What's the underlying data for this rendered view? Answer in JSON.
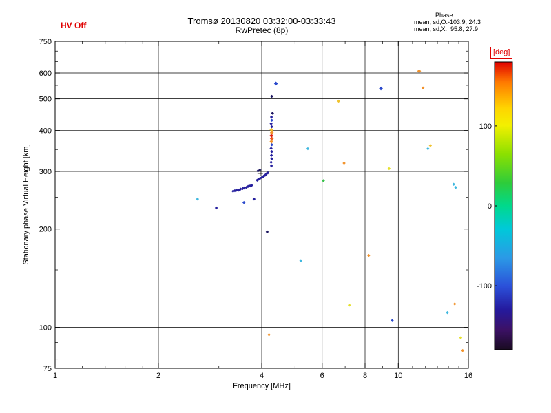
{
  "header": {
    "hv_status": "HV Off",
    "title": "Tromsø 20130820 03:32:00-03:33:43",
    "subtitle": "RwPretec (8p)",
    "stats_title": "Phase",
    "stats_line1": "mean, sd,O:-103.9, 24.3",
    "stats_line2": "mean, sd,X:  95.8, 27.9"
  },
  "axes": {
    "x_label": "Frequency [MHz]",
    "y_label": "Stationary phase Virtual Height [km]",
    "x_ticks": [
      1,
      2,
      4,
      6,
      8,
      10,
      16
    ],
    "y_ticks": [
      75,
      100,
      200,
      300,
      400,
      500,
      600,
      750
    ],
    "x_minor": [
      1.2,
      1.4,
      1.6,
      1.8,
      3,
      5,
      7,
      9,
      11,
      12,
      13,
      14,
      15
    ],
    "y_minor": [
      80,
      90,
      150,
      250,
      350,
      450,
      550,
      650,
      700
    ]
  },
  "colorbar": {
    "label": "[deg]",
    "ticks": [
      100,
      0,
      -100
    ],
    "range": [
      180,
      -180
    ],
    "stops": [
      [
        "#e00000",
        0
      ],
      [
        "#ff7a00",
        0.07
      ],
      [
        "#ffd400",
        0.16
      ],
      [
        "#f3f000",
        0.22
      ],
      [
        "#8ce000",
        0.32
      ],
      [
        "#2ecc3a",
        0.42
      ],
      [
        "#00d98c",
        0.5
      ],
      [
        "#00c9d9",
        0.58
      ],
      [
        "#2b9ae6",
        0.68
      ],
      [
        "#2b50d9",
        0.78
      ],
      [
        "#241a9e",
        0.86
      ],
      [
        "#3c1166",
        0.93
      ],
      [
        "#190b20",
        1
      ]
    ]
  },
  "colors": {
    "accent_red": "#e00000",
    "axis": "#000000",
    "background": "#ffffff"
  },
  "chart_data": {
    "type": "scatter",
    "title": "Tromsø 20130820 03:32:00-03:33:43",
    "xlabel": "Frequency [MHz]",
    "ylabel": "Stationary phase Virtual Height [km]",
    "xlim": [
      1,
      16
    ],
    "ylim": [
      75,
      750
    ],
    "xscale": "log",
    "yscale": "log",
    "color_dimension": "phase [deg]",
    "grid": true,
    "points": [
      [
        3.3,
        261,
        "#26209e"
      ],
      [
        3.34,
        262,
        "#26209e"
      ],
      [
        3.38,
        263,
        "#26209e"
      ],
      [
        3.43,
        263,
        "#26209e"
      ],
      [
        3.47,
        265,
        "#26209e"
      ],
      [
        3.52,
        266,
        "#26209e"
      ],
      [
        3.56,
        267,
        "#26209e"
      ],
      [
        3.61,
        268,
        "#26209e"
      ],
      [
        3.65,
        270,
        "#26209e"
      ],
      [
        3.7,
        271,
        "#26209e"
      ],
      [
        3.74,
        272,
        "#26209e"
      ],
      [
        3.88,
        282,
        "#26209e"
      ],
      [
        3.92,
        284,
        "#26209e"
      ],
      [
        3.96,
        286,
        "#26209e"
      ],
      [
        4.01,
        288,
        "#26209e"
      ],
      [
        4.05,
        290,
        "#26209e"
      ],
      [
        4.09,
        292,
        "#26209e"
      ],
      [
        4.13,
        295,
        "#26209e"
      ],
      [
        4.17,
        297,
        "#26209e"
      ],
      [
        3.9,
        301,
        "#1b1560"
      ],
      [
        3.95,
        303,
        "#1b1560"
      ],
      [
        4.27,
        312,
        "#26209e"
      ],
      [
        4.26,
        320,
        "#26209e"
      ],
      [
        4.28,
        328,
        "#26209e"
      ],
      [
        4.27,
        336,
        "#26209e"
      ],
      [
        4.28,
        345,
        "#26209e"
      ],
      [
        4.26,
        353,
        "#26209e"
      ],
      [
        4.28,
        362,
        "#2a49cc"
      ],
      [
        4.27,
        370,
        "#f2922a",
        4
      ],
      [
        4.28,
        378,
        "#ee5a1c",
        4
      ],
      [
        4.27,
        386,
        "#e02318",
        4
      ],
      [
        4.28,
        394,
        "#f2922a",
        4
      ],
      [
        4.27,
        402,
        "#f0c32e",
        4
      ],
      [
        4.28,
        411,
        "#26209e"
      ],
      [
        4.26,
        420,
        "#26209e"
      ],
      [
        4.28,
        430,
        "#2a49cc"
      ],
      [
        4.27,
        440,
        "#26209e"
      ],
      [
        4.3,
        452,
        "#1b1560"
      ],
      [
        4.28,
        509,
        "#1b1560"
      ],
      [
        4.4,
        557,
        "#2a49cc",
        4
      ],
      [
        2.6,
        247,
        "#3fb8df"
      ],
      [
        2.95,
        232,
        "#26209e"
      ],
      [
        3.55,
        241,
        "#2a49cc"
      ],
      [
        3.8,
        247,
        "#26209e"
      ],
      [
        4.15,
        196,
        "#1b1560"
      ],
      [
        4.2,
        95,
        "#f2922a"
      ],
      [
        5.2,
        160,
        "#3fb8df"
      ],
      [
        5.45,
        352,
        "#3fb8df"
      ],
      [
        6.05,
        281,
        "#39c24a"
      ],
      [
        6.7,
        492,
        "#f0c32e"
      ],
      [
        6.95,
        318,
        "#f2922a"
      ],
      [
        7.2,
        117,
        "#e5e02c"
      ],
      [
        8.2,
        166,
        "#f2922a"
      ],
      [
        8.9,
        538,
        "#2a49cc",
        4
      ],
      [
        9.4,
        306,
        "#e5e02c"
      ],
      [
        9.6,
        105,
        "#2a49cc"
      ],
      [
        11.5,
        608,
        "#f2922a",
        4
      ],
      [
        11.8,
        540,
        "#f2922a"
      ],
      [
        12.2,
        352,
        "#3fb8df"
      ],
      [
        12.4,
        360,
        "#f0c32e"
      ],
      [
        13.9,
        111,
        "#3fb8df"
      ],
      [
        14.5,
        274,
        "#3fb8df"
      ],
      [
        14.7,
        268,
        "#3fb8df"
      ],
      [
        14.6,
        118,
        "#f2922a"
      ],
      [
        15.2,
        93,
        "#e5e02c"
      ],
      [
        15.4,
        85,
        "#f2922a"
      ]
    ],
    "plus_markers": [
      [
        3.96,
        296
      ]
    ]
  }
}
